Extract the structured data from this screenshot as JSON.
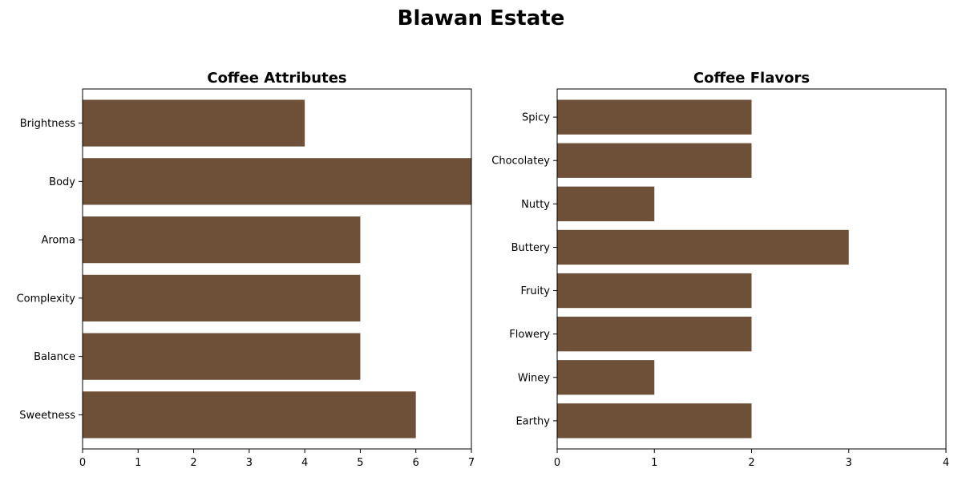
{
  "figure": {
    "title": "Blawan Estate",
    "bar_color": "#6e4f37"
  },
  "chart_data": [
    {
      "type": "bar",
      "orientation": "horizontal",
      "title": "Coffee Attributes",
      "categories": [
        "Sweetness",
        "Balance",
        "Complexity",
        "Aroma",
        "Body",
        "Brightness"
      ],
      "values": [
        6,
        5,
        5,
        5,
        7,
        4
      ],
      "xlim": [
        0,
        7
      ],
      "xticks": [
        0,
        1,
        2,
        3,
        4,
        5,
        6,
        7
      ],
      "xlabel": "",
      "ylabel": "",
      "grid": false,
      "legend": "none"
    },
    {
      "type": "bar",
      "orientation": "horizontal",
      "title": "Coffee Flavors",
      "categories": [
        "Earthy",
        "Winey",
        "Flowery",
        "Fruity",
        "Buttery",
        "Nutty",
        "Chocolatey",
        "Spicy"
      ],
      "values": [
        2,
        1,
        2,
        2,
        3,
        1,
        2,
        2
      ],
      "xlim": [
        0,
        4
      ],
      "xticks": [
        0,
        1,
        2,
        3,
        4
      ],
      "xlabel": "",
      "ylabel": "",
      "grid": false,
      "legend": "none"
    }
  ]
}
